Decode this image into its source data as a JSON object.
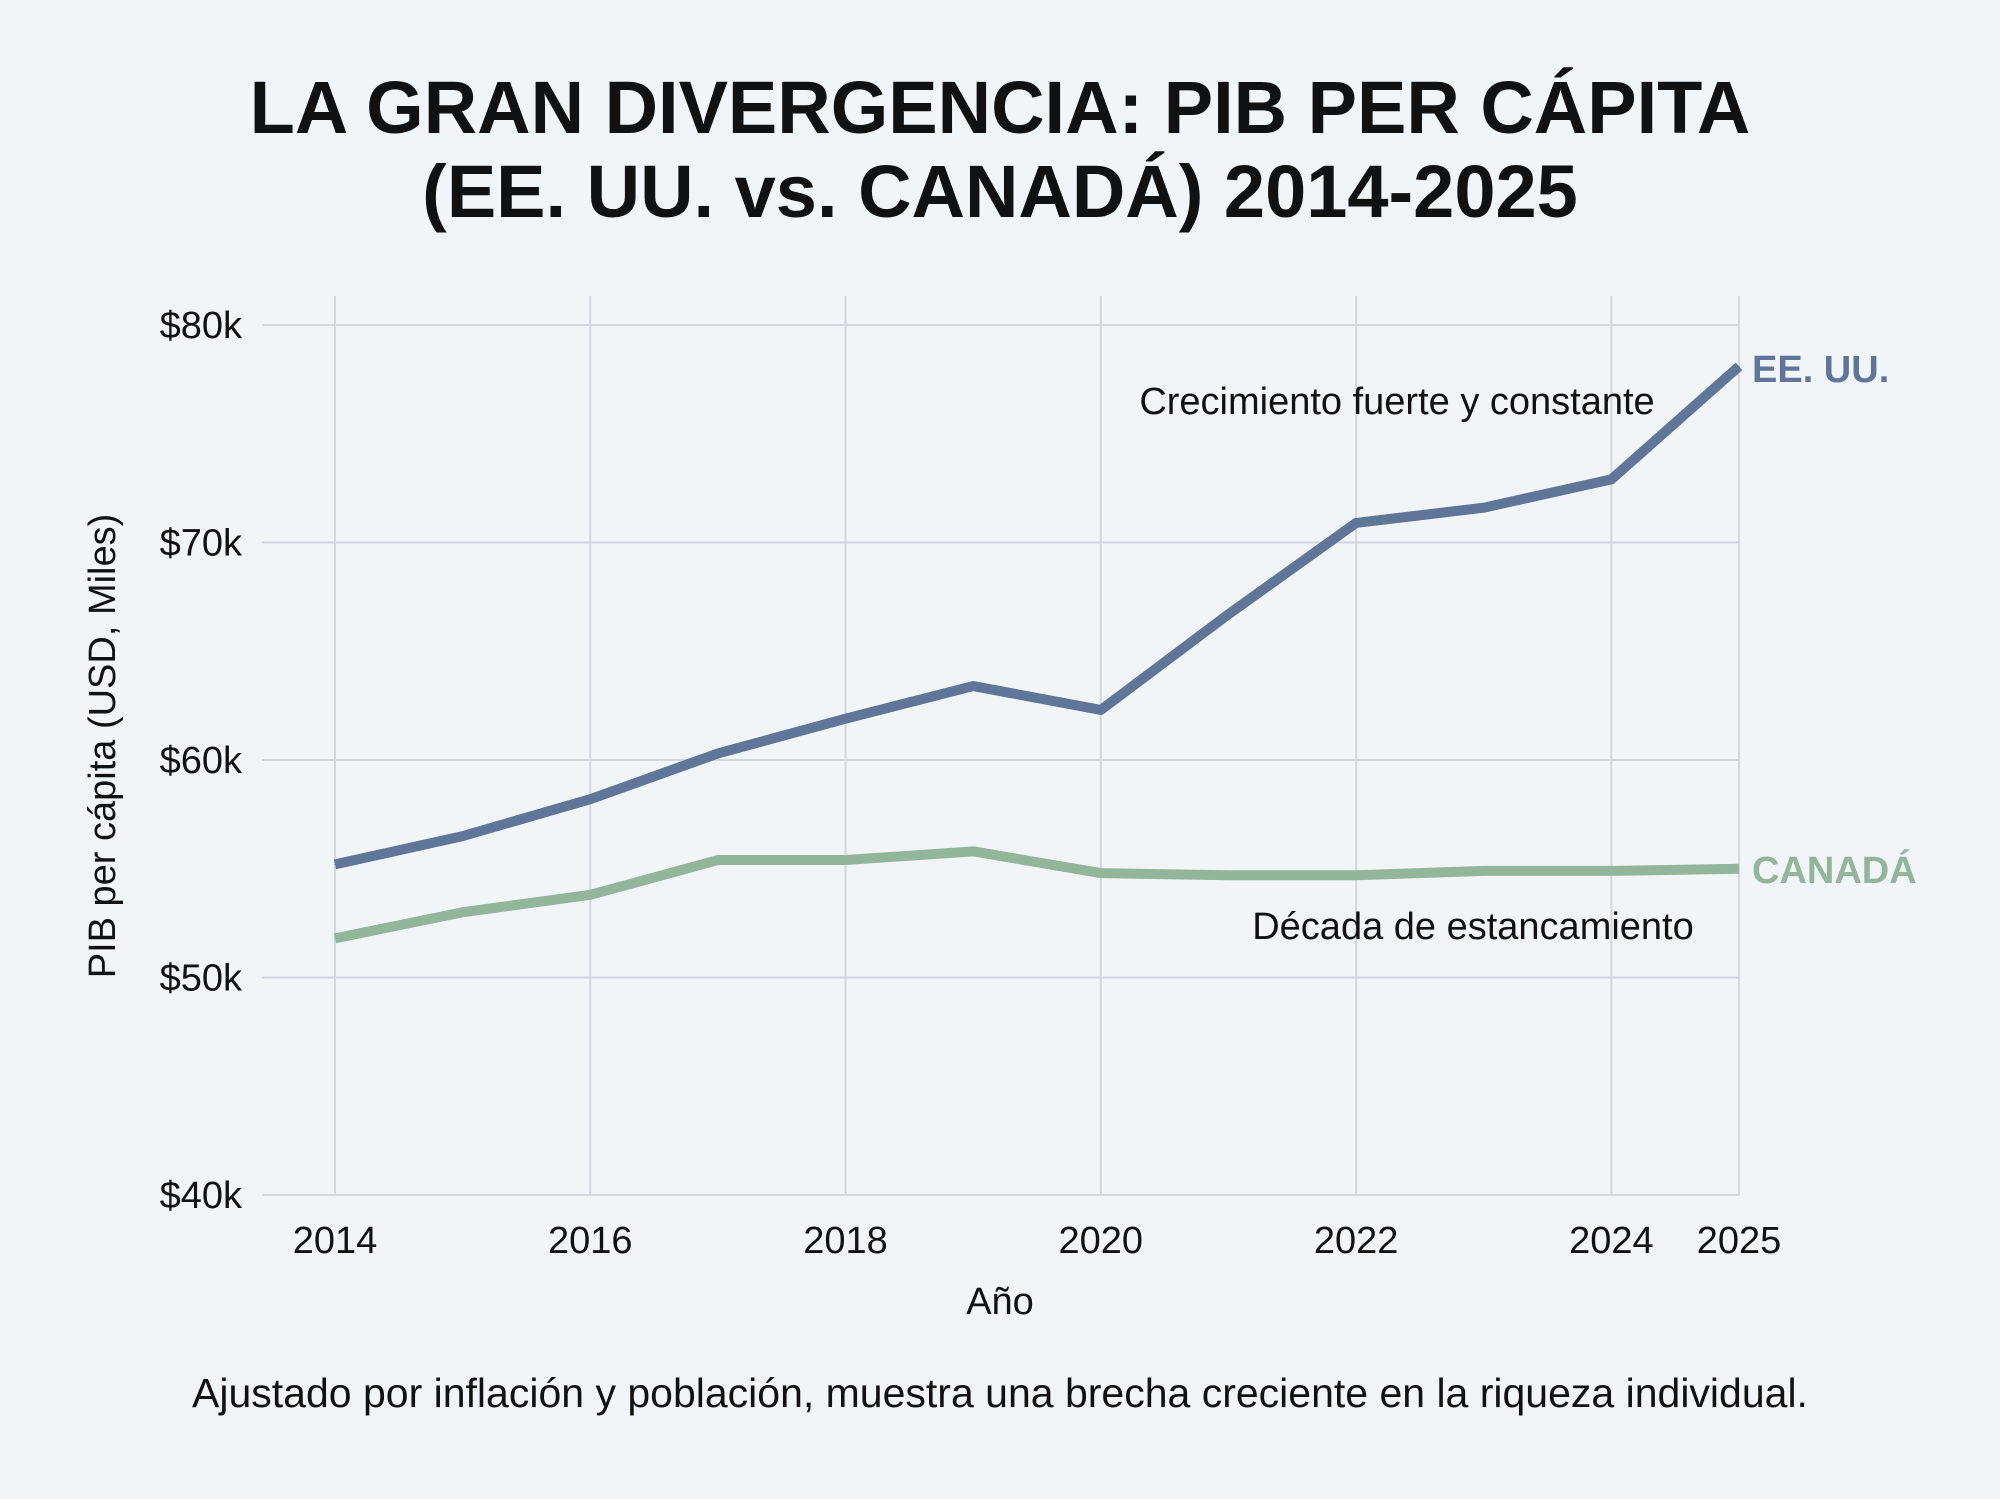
{
  "chart_data": {
    "type": "line",
    "title": "LA GRAN DIVERGENCIA: PIB PER CÁPITA (EE. UU. vs. CANADÁ) 2014-2025",
    "title_lines": [
      "LA GRAN DIVERGENCIA: PIB PER CÁPITA",
      "(EE. UU. vs. CANADÁ) 2014-2025"
    ],
    "xlabel": "Año",
    "ylabel": "PIB per cápita (USD, Miles)",
    "xlim": [
      2014,
      2025
    ],
    "ylim": [
      40,
      80
    ],
    "x_ticks": [
      2014,
      2016,
      2018,
      2020,
      2022,
      2024,
      2025
    ],
    "y_ticks": [
      40,
      50,
      60,
      70,
      80
    ],
    "y_tick_labels": [
      "$40k",
      "$50k",
      "$60k",
      "$70k",
      "$80k"
    ],
    "grid": true,
    "legend": "direct labels at right end of lines",
    "x": [
      2014,
      2015,
      2016,
      2017,
      2018,
      2019,
      2020,
      2021,
      2022,
      2023,
      2024,
      2025
    ],
    "series": [
      {
        "name": "EE. UU.",
        "color": "#5f7699",
        "values": [
          55.2,
          56.5,
          58.2,
          60.3,
          61.9,
          63.4,
          62.3,
          66.7,
          70.9,
          71.6,
          72.9,
          78.1
        ]
      },
      {
        "name": "CANADÁ",
        "color": "#93b59c",
        "values": [
          51.8,
          53.0,
          53.8,
          55.4,
          55.4,
          55.8,
          54.8,
          54.7,
          54.7,
          54.9,
          54.9,
          55.0
        ]
      }
    ],
    "annotations": [
      "Crecimiento fuerte y constante",
      "Década de estancamiento"
    ],
    "footnote": "Ajustado por inflación y población, muestra una brecha creciente en la riqueza individual."
  }
}
